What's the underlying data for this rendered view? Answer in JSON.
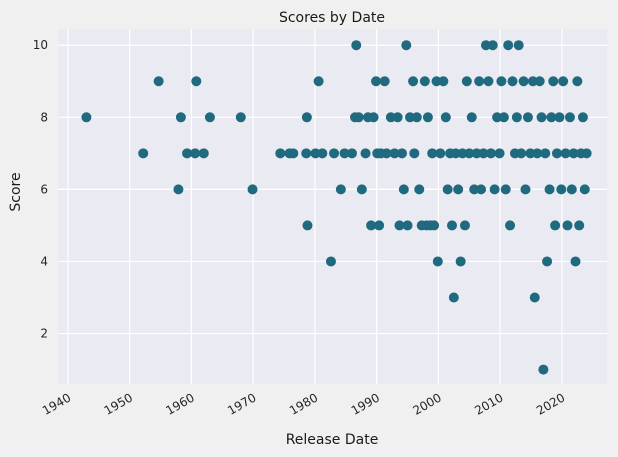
{
  "chart_data": {
    "type": "scatter",
    "title": "Scores by Date",
    "xlabel": "Release Date",
    "ylabel": "Score",
    "xlim": [
      1938.4,
      2027.3
    ],
    "ylim": [
      0.6,
      10.45
    ],
    "xticks": [
      "1940",
      "1950",
      "1960",
      "1970",
      "1980",
      "1990",
      "2000",
      "2010",
      "2020"
    ],
    "yticks": [
      "2",
      "4",
      "6",
      "8",
      "10"
    ],
    "grid": true,
    "marker_color": "#1f6a7e",
    "plot_background": "#eaeaf2",
    "points": [
      [
        1943.0,
        8
      ],
      [
        1952.2,
        7
      ],
      [
        1954.7,
        9
      ],
      [
        1957.9,
        6
      ],
      [
        1958.3,
        8
      ],
      [
        1959.3,
        7
      ],
      [
        1960.6,
        7
      ],
      [
        1960.8,
        9
      ],
      [
        1962.0,
        7
      ],
      [
        1963.0,
        8
      ],
      [
        1968.0,
        8
      ],
      [
        1969.9,
        6
      ],
      [
        1974.4,
        7
      ],
      [
        1975.9,
        7
      ],
      [
        1976.5,
        7
      ],
      [
        1978.6,
        7
      ],
      [
        1978.7,
        8
      ],
      [
        1978.8,
        5
      ],
      [
        1980.1,
        7
      ],
      [
        1980.6,
        9
      ],
      [
        1981.2,
        7
      ],
      [
        1982.6,
        4
      ],
      [
        1983.1,
        7
      ],
      [
        1984.2,
        6
      ],
      [
        1984.8,
        7
      ],
      [
        1986.0,
        7
      ],
      [
        1986.5,
        8
      ],
      [
        1986.7,
        10
      ],
      [
        1987.1,
        8
      ],
      [
        1987.6,
        6
      ],
      [
        1988.2,
        7
      ],
      [
        1988.6,
        8
      ],
      [
        1989.1,
        5
      ],
      [
        1989.5,
        8
      ],
      [
        1989.9,
        9
      ],
      [
        1990.1,
        7
      ],
      [
        1990.4,
        5
      ],
      [
        1990.7,
        7
      ],
      [
        1991.3,
        9
      ],
      [
        1991.6,
        7
      ],
      [
        1992.3,
        8
      ],
      [
        1992.9,
        7
      ],
      [
        1993.4,
        8
      ],
      [
        1993.7,
        5
      ],
      [
        1994.1,
        7
      ],
      [
        1994.4,
        6
      ],
      [
        1994.8,
        10
      ],
      [
        1995.0,
        5
      ],
      [
        1995.4,
        8
      ],
      [
        1995.9,
        9
      ],
      [
        1996.1,
        7
      ],
      [
        1996.5,
        8
      ],
      [
        1996.9,
        6
      ],
      [
        1997.3,
        5
      ],
      [
        1997.8,
        9
      ],
      [
        1998.1,
        5
      ],
      [
        1998.3,
        8
      ],
      [
        1998.7,
        5
      ],
      [
        1999.0,
        7
      ],
      [
        1999.3,
        5
      ],
      [
        1999.7,
        9
      ],
      [
        1999.9,
        4
      ],
      [
        2000.3,
        7
      ],
      [
        2000.8,
        9
      ],
      [
        2001.2,
        8
      ],
      [
        2001.5,
        6
      ],
      [
        2001.9,
        7
      ],
      [
        2002.2,
        5
      ],
      [
        2002.5,
        3
      ],
      [
        2002.8,
        7
      ],
      [
        2003.2,
        6
      ],
      [
        2003.6,
        4
      ],
      [
        2003.9,
        7
      ],
      [
        2004.3,
        5
      ],
      [
        2004.6,
        9
      ],
      [
        2005.0,
        7
      ],
      [
        2005.4,
        8
      ],
      [
        2005.8,
        6
      ],
      [
        2006.2,
        7
      ],
      [
        2006.6,
        9
      ],
      [
        2006.9,
        6
      ],
      [
        2007.3,
        7
      ],
      [
        2007.7,
        10
      ],
      [
        2008.1,
        9
      ],
      [
        2008.5,
        7
      ],
      [
        2008.8,
        10
      ],
      [
        2009.1,
        6
      ],
      [
        2009.5,
        8
      ],
      [
        2009.9,
        7
      ],
      [
        2010.2,
        9
      ],
      [
        2010.6,
        8
      ],
      [
        2010.9,
        6
      ],
      [
        2011.3,
        10
      ],
      [
        2011.6,
        5
      ],
      [
        2012.0,
        9
      ],
      [
        2012.4,
        7
      ],
      [
        2012.7,
        8
      ],
      [
        2013.0,
        10
      ],
      [
        2013.4,
        7
      ],
      [
        2013.8,
        9
      ],
      [
        2014.1,
        6
      ],
      [
        2014.5,
        8
      ],
      [
        2014.9,
        7
      ],
      [
        2015.3,
        9
      ],
      [
        2015.6,
        3
      ],
      [
        2016.0,
        7
      ],
      [
        2016.4,
        9
      ],
      [
        2016.7,
        8
      ],
      [
        2017.0,
        1
      ],
      [
        2017.3,
        7
      ],
      [
        2017.6,
        4
      ],
      [
        2018.0,
        6
      ],
      [
        2018.3,
        8
      ],
      [
        2018.6,
        9
      ],
      [
        2018.9,
        5
      ],
      [
        2019.2,
        7
      ],
      [
        2019.6,
        8
      ],
      [
        2019.9,
        6
      ],
      [
        2020.2,
        9
      ],
      [
        2020.6,
        7
      ],
      [
        2020.9,
        5
      ],
      [
        2021.3,
        8
      ],
      [
        2021.6,
        6
      ],
      [
        2021.9,
        7
      ],
      [
        2022.2,
        4
      ],
      [
        2022.5,
        9
      ],
      [
        2022.8,
        5
      ],
      [
        2023.1,
        7
      ],
      [
        2023.4,
        8
      ],
      [
        2023.7,
        6
      ],
      [
        2024.0,
        7
      ]
    ]
  }
}
